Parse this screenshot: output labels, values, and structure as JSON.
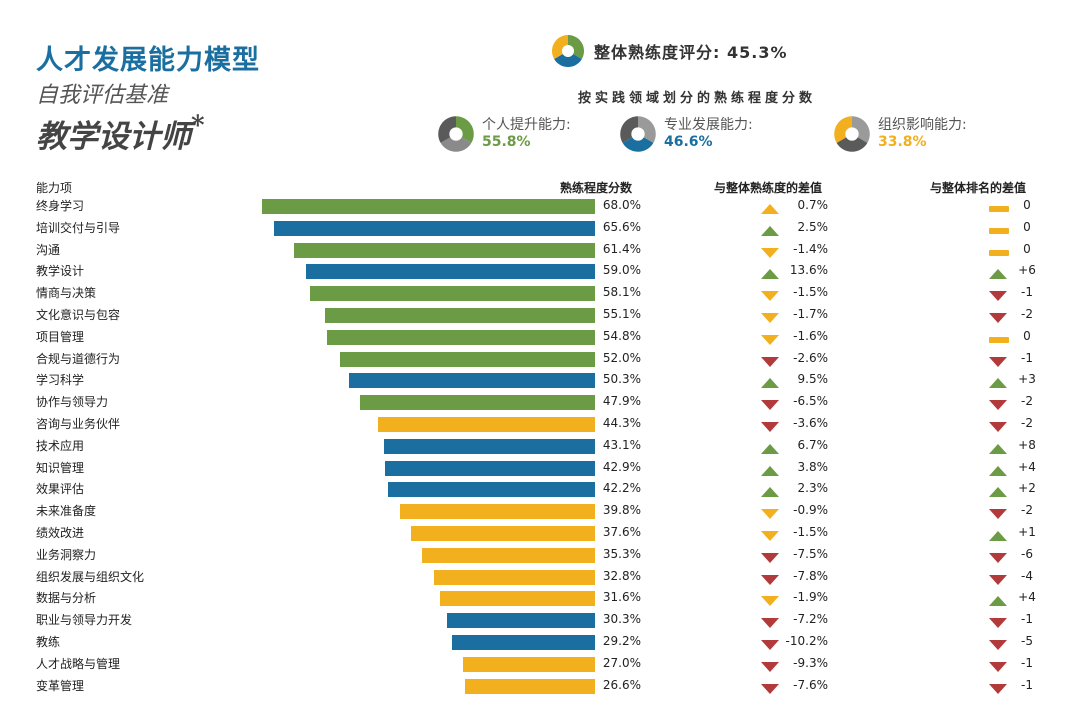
{
  "header": {
    "title": "人才发展能力模型",
    "subtitle": "自我评估基准",
    "role": "教学设计师",
    "role_mark": "*",
    "overall_label": "整体熟练度评分:",
    "overall_value": "45.3%",
    "domain_caption": "按实践领域划分的熟练程度分数"
  },
  "legend": [
    {
      "name": "个人提升能力:",
      "value": "55.8%",
      "color": "#6b9b45"
    },
    {
      "name": "专业发展能力:",
      "value": "46.6%",
      "color": "#1b6fa0"
    },
    {
      "name": "组织影响能力:",
      "value": "33.8%",
      "color": "#f2b01e"
    }
  ],
  "colors": {
    "personal": "#6b9b45",
    "professional": "#1b6fa0",
    "organizational": "#f2b01e",
    "up": "#6b9b45",
    "down": "#b23a3a",
    "neutral": "#f2b01e",
    "logo_gray": "#8a8a8a"
  },
  "columns": {
    "capability": "能力项",
    "score": "熟练程度分数",
    "diff": "与整体熟练度的差值",
    "rank": "与整体排名的差值"
  },
  "chart_data": {
    "type": "bar",
    "orientation": "horizontal",
    "title": "按实践领域划分的熟练程度分数",
    "xlabel": "熟练程度分数",
    "ylabel": "能力项",
    "xlim": [
      0,
      70
    ],
    "categories": [
      "终身学习",
      "培训交付与引导",
      "沟通",
      "教学设计",
      "情商与决策",
      "文化意识与包容",
      "项目管理",
      "合规与道德行为",
      "学习科学",
      "协作与领导力",
      "咨询与业务伙伴",
      "技术应用",
      "知识管理",
      "效果评估",
      "未来准备度",
      "绩效改进",
      "业务洞察力",
      "组织发展与组织文化",
      "数据与分析",
      "职业与领导力开发",
      "教练",
      "人才战略与管理",
      "变革管理"
    ],
    "values": [
      68.0,
      65.6,
      61.4,
      59.0,
      58.1,
      55.1,
      54.8,
      52.0,
      50.3,
      47.9,
      44.3,
      43.1,
      42.9,
      42.2,
      39.8,
      37.6,
      35.3,
      32.8,
      31.6,
      30.3,
      29.2,
      27.0,
      26.6
    ],
    "value_labels": [
      "68.0%",
      "65.6%",
      "61.4%",
      "59.0%",
      "58.1%",
      "55.1%",
      "54.8%",
      "52.0%",
      "50.3%",
      "47.9%",
      "44.3%",
      "43.1%",
      "42.9%",
      "42.2%",
      "39.8%",
      "37.6%",
      "35.3%",
      "32.8%",
      "31.6%",
      "30.3%",
      "29.2%",
      "27.0%",
      "26.6%"
    ],
    "domains": [
      "personal",
      "professional",
      "personal",
      "professional",
      "personal",
      "personal",
      "personal",
      "personal",
      "professional",
      "personal",
      "organizational",
      "professional",
      "professional",
      "professional",
      "organizational",
      "organizational",
      "organizational",
      "organizational",
      "organizational",
      "professional",
      "professional",
      "organizational",
      "organizational"
    ],
    "diff_labels": [
      "0.7%",
      "2.5%",
      "-1.4%",
      "13.6%",
      "-1.5%",
      "-1.7%",
      "-1.6%",
      "-2.6%",
      "9.5%",
      "-6.5%",
      "-3.6%",
      "6.7%",
      "3.8%",
      "2.3%",
      "-0.9%",
      "-1.5%",
      "-7.5%",
      "-7.8%",
      "-1.9%",
      "-7.2%",
      "-10.2%",
      "-9.3%",
      "-7.6%"
    ],
    "diff_icons": [
      "up-yellow",
      "up",
      "down-yellow",
      "up",
      "down-yellow",
      "down-yellow",
      "down-yellow",
      "down",
      "up",
      "down",
      "down",
      "up",
      "up",
      "up",
      "down-yellow",
      "down-yellow",
      "down",
      "down",
      "down-yellow",
      "down",
      "down",
      "down",
      "down"
    ],
    "rank_labels": [
      "0",
      "0",
      "0",
      "+6",
      "-1",
      "-2",
      "0",
      "-1",
      "+3",
      "-2",
      "-2",
      "+8",
      "+4",
      "+2",
      "-2",
      "+1",
      "-6",
      "-4",
      "+4",
      "-1",
      "-5",
      "-1",
      "-1"
    ],
    "rank_icons": [
      "neutral",
      "neutral",
      "neutral",
      "up",
      "down",
      "down",
      "neutral",
      "down",
      "up",
      "down",
      "down",
      "up",
      "up",
      "up",
      "down",
      "up",
      "down",
      "down",
      "up",
      "down",
      "down",
      "down",
      "down"
    ]
  }
}
